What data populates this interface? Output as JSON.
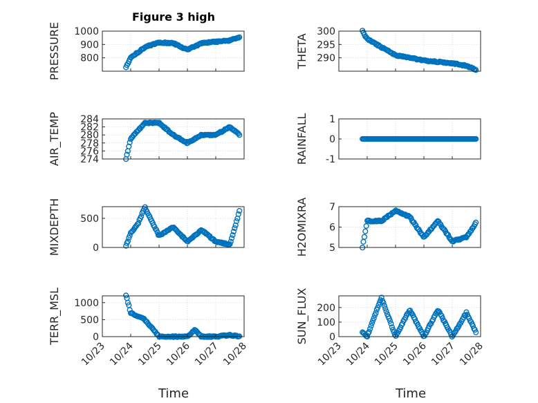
{
  "figure": {
    "title": "Figure 3 high",
    "x_axis_label": "Time"
  },
  "style": {
    "marker_color": "#0072BD",
    "axis_color": "#262626",
    "grid_color": "#d9d9d9",
    "background": "#ffffff"
  },
  "chart_data": [
    {
      "type": "scatter",
      "panel": "pressure",
      "ylabel": "PRESSURE",
      "ylim": [
        700,
        1000
      ],
      "yticks": [
        800,
        900,
        1000
      ],
      "yticklabels": [
        "800",
        "900",
        "1000"
      ],
      "x_start": "2023-10-23",
      "x_end": "2023-10-28",
      "x": [
        "10/23 20:00",
        "10/24 00:00",
        "10/24 12:00",
        "10/25 00:00",
        "10/25 12:00",
        "10/26 00:00",
        "10/26 12:00",
        "10/27 00:00",
        "10/27 12:00",
        "10/27 20:00"
      ],
      "y": [
        730,
        800,
        880,
        915,
        910,
        860,
        910,
        920,
        930,
        955
      ]
    },
    {
      "type": "scatter",
      "panel": "theta",
      "ylabel": "THETA",
      "ylim": [
        285,
        300
      ],
      "yticks": [
        290,
        295,
        300
      ],
      "yticklabels": [
        "290",
        "295",
        "300"
      ],
      "x_start": "2023-10-23",
      "x_end": "2023-10-28",
      "x": [
        "10/23 20:00",
        "10/24 00:00",
        "10/24 12:00",
        "10/25 00:00",
        "10/25 12:00",
        "10/26 00:00",
        "10/26 12:00",
        "10/27 00:00",
        "10/27 12:00",
        "10/27 20:00"
      ],
      "y": [
        300,
        297,
        294,
        291,
        290,
        289,
        288.5,
        288,
        287,
        285.5
      ]
    },
    {
      "type": "scatter",
      "panel": "air-temp",
      "ylabel": "AIR_TEMP",
      "ylim": [
        274,
        284
      ],
      "yticks": [
        274,
        276,
        278,
        280,
        282,
        284
      ],
      "yticklabels": [
        "274",
        "276",
        "278",
        "280",
        "282",
        "284"
      ],
      "x_start": "2023-10-23",
      "x_end": "2023-10-28",
      "x": [
        "10/23 20:00",
        "10/24 00:00",
        "10/24 12:00",
        "10/25 00:00",
        "10/25 12:00",
        "10/26 00:00",
        "10/26 12:00",
        "10/27 00:00",
        "10/27 12:00",
        "10/27 20:00"
      ],
      "y": [
        274,
        279,
        283,
        283,
        280,
        278,
        280,
        280,
        282,
        280
      ]
    },
    {
      "type": "scatter",
      "panel": "rainfall",
      "ylabel": "RAINFALL",
      "ylim": [
        -1,
        1
      ],
      "yticks": [
        -1,
        0,
        1
      ],
      "yticklabels": [
        "-1",
        "0",
        "1"
      ],
      "x_start": "2023-10-23",
      "x_end": "2023-10-28",
      "x": [
        "10/23 20:00",
        "10/24 12:00",
        "10/25 12:00",
        "10/26 12:00",
        "10/27 12:00",
        "10/27 20:00"
      ],
      "y": [
        0,
        0,
        0,
        0,
        0,
        0
      ]
    },
    {
      "type": "scatter",
      "panel": "mixdepth",
      "ylabel": "MIXDEPTH",
      "ylim": [
        0,
        700
      ],
      "yticks": [
        0,
        500
      ],
      "yticklabels": [
        "0",
        "500"
      ],
      "x_start": "2023-10-23",
      "x_end": "2023-10-28",
      "x": [
        "10/23 20:00",
        "10/24 00:00",
        "10/24 06:00",
        "10/24 12:00",
        "10/25 00:00",
        "10/25 12:00",
        "10/26 00:00",
        "10/26 12:00",
        "10/27 00:00",
        "10/27 12:00",
        "10/27 20:00"
      ],
      "y": [
        20,
        250,
        400,
        690,
        200,
        350,
        100,
        300,
        100,
        50,
        620
      ]
    },
    {
      "type": "scatter",
      "panel": "h2omixra",
      "ylabel": "H2OMIXRA",
      "ylim": [
        5,
        7
      ],
      "yticks": [
        5,
        6,
        7
      ],
      "yticklabels": [
        "5",
        "6",
        "7"
      ],
      "x_start": "2023-10-23",
      "x_end": "2023-10-28",
      "x": [
        "10/23 20:00",
        "10/24 00:00",
        "10/24 12:00",
        "10/25 00:00",
        "10/25 12:00",
        "10/26 00:00",
        "10/26 12:00",
        "10/27 00:00",
        "10/27 12:00",
        "10/27 20:00"
      ],
      "y": [
        5,
        6.3,
        6.3,
        6.8,
        6.5,
        5.5,
        6.3,
        5.3,
        5.5,
        6.2
      ]
    },
    {
      "type": "scatter",
      "panel": "terr-msl",
      "ylabel": "TERR_MSL",
      "ylim": [
        0,
        1200
      ],
      "yticks": [
        0,
        500,
        1000
      ],
      "yticklabels": [
        "0",
        "500",
        "1000"
      ],
      "x_start": "2023-10-23",
      "x_end": "2023-10-28",
      "x": [
        "10/23 20:00",
        "10/24 00:00",
        "10/24 12:00",
        "10/25 00:00",
        "10/26 00:00",
        "10/26 06:00",
        "10/26 12:00",
        "10/27 00:00",
        "10/27 12:00",
        "10/27 20:00"
      ],
      "y": [
        1230,
        700,
        500,
        0,
        0,
        200,
        0,
        0,
        50,
        0
      ]
    },
    {
      "type": "scatter",
      "panel": "sun-flux",
      "ylabel": "SUN_FLUX",
      "ylim": [
        0,
        280
      ],
      "yticks": [
        0,
        100,
        200
      ],
      "yticklabels": [
        "0",
        "100",
        "200"
      ],
      "x_start": "2023-10-23",
      "x_end": "2023-10-28",
      "x": [
        "10/23 20:00",
        "10/24 00:00",
        "10/24 12:00",
        "10/25 00:00",
        "10/25 12:00",
        "10/26 00:00",
        "10/26 12:00",
        "10/27 00:00",
        "10/27 12:00",
        "10/27 20:00"
      ],
      "y": [
        30,
        0,
        270,
        0,
        185,
        0,
        185,
        0,
        165,
        30
      ]
    }
  ],
  "xticklabels": [
    "10/23",
    "10/24",
    "10/25",
    "10/26",
    "10/27",
    "10/28"
  ]
}
